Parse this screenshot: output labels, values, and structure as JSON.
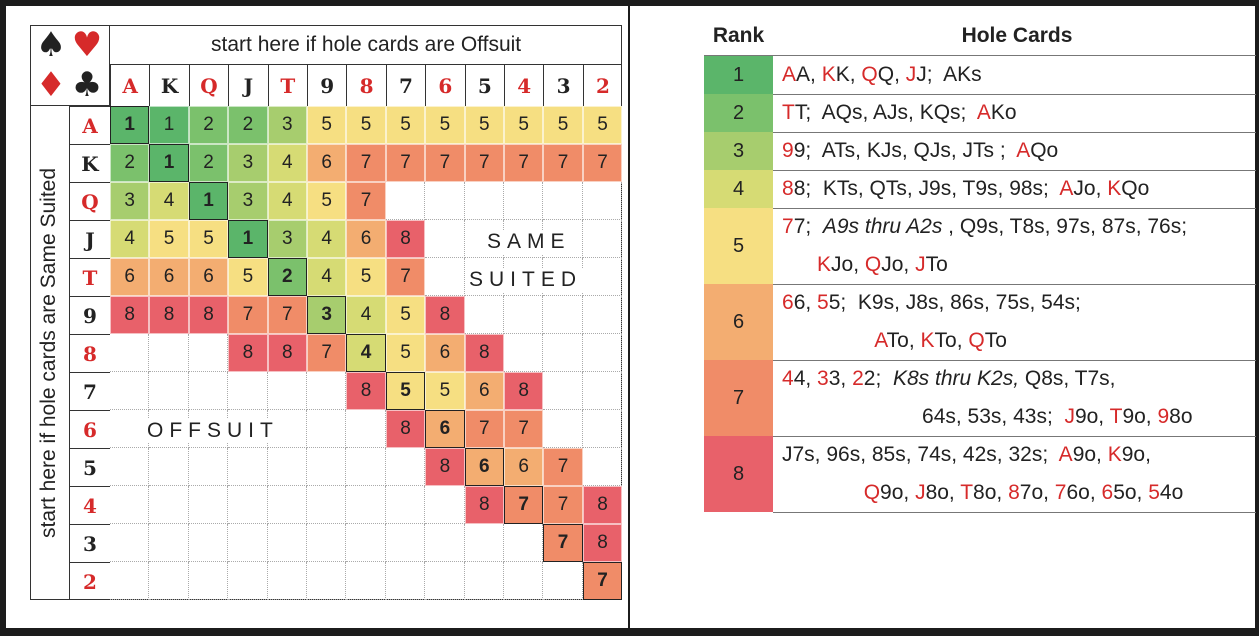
{
  "colors": {
    "r1": "#5bb56a",
    "r2": "#7bc16c",
    "r3": "#a7cd6e",
    "r4": "#d6db74",
    "r5": "#f6df82",
    "r6": "#f3ad71",
    "r7": "#f08c68",
    "r8": "#e8616a",
    "red": "#d62a2a",
    "black": "#222222"
  },
  "chart": {
    "top_header": "start here if hole cards are Offsuit",
    "side_header": "start here if hole cards are Same Suited",
    "suits": [
      {
        "icon": "spade-icon",
        "glyph": "♠",
        "color": "black"
      },
      {
        "icon": "heart-icon",
        "glyph": "♥",
        "color": "red"
      },
      {
        "icon": "diamond-icon",
        "glyph": "♦",
        "color": "red"
      },
      {
        "icon": "club-icon",
        "glyph": "♣",
        "color": "black"
      }
    ],
    "ranks": [
      "A",
      "K",
      "Q",
      "J",
      "T",
      "9",
      "8",
      "7",
      "6",
      "5",
      "4",
      "3",
      "2"
    ],
    "rank_colors": [
      "red",
      "black",
      "red",
      "black",
      "red",
      "black",
      "red",
      "black",
      "red",
      "black",
      "red",
      "black",
      "red"
    ],
    "suited_label_1": "SAME",
    "suited_label_2": "SUITED",
    "offsuit_label": "OFFSUIT",
    "cells": [
      [
        "1",
        "1",
        "2",
        "2",
        "3",
        "5",
        "5",
        "5",
        "5",
        "5",
        "5",
        "5",
        "5"
      ],
      [
        "2",
        "1",
        "2",
        "3",
        "4",
        "6",
        "7",
        "7",
        "7",
        "7",
        "7",
        "7",
        "7"
      ],
      [
        "3",
        "4",
        "1",
        "3",
        "4",
        "5",
        "7",
        "",
        "",
        "",
        "",
        "",
        ""
      ],
      [
        "4",
        "5",
        "5",
        "1",
        "3",
        "4",
        "6",
        "8",
        "",
        "",
        "",
        "",
        ""
      ],
      [
        "6",
        "6",
        "6",
        "5",
        "2",
        "4",
        "5",
        "7",
        "",
        "",
        "",
        "",
        ""
      ],
      [
        "8",
        "8",
        "8",
        "7",
        "7",
        "3",
        "4",
        "5",
        "8",
        "",
        "",
        "",
        ""
      ],
      [
        "",
        "",
        "",
        "8",
        "8",
        "7",
        "4",
        "5",
        "6",
        "8",
        "",
        "",
        ""
      ],
      [
        "",
        "",
        "",
        "",
        "",
        "",
        "8",
        "5",
        "5",
        "6",
        "8",
        "",
        ""
      ],
      [
        "",
        "",
        "",
        "",
        "",
        "",
        "",
        "8",
        "6",
        "7",
        "7",
        "",
        ""
      ],
      [
        "",
        "",
        "",
        "",
        "",
        "",
        "",
        "",
        "8",
        "6",
        "6",
        "7",
        ""
      ],
      [
        "",
        "",
        "",
        "",
        "",
        "",
        "",
        "",
        "",
        "8",
        "7",
        "7",
        "8"
      ],
      [
        "",
        "",
        "",
        "",
        "",
        "",
        "",
        "",
        "",
        "",
        "",
        "7",
        "8"
      ],
      [
        "",
        "",
        "",
        "",
        "",
        "",
        "",
        "",
        "",
        "",
        "",
        "",
        "7"
      ]
    ]
  },
  "table": {
    "rank_header": "Rank",
    "cards_header": "Hole Cards",
    "rows": [
      {
        "rank": "1",
        "lines": [
          [
            [
              "r",
              "A"
            ],
            [
              "",
              "A, "
            ],
            [
              "r",
              "K"
            ],
            [
              "",
              "K, "
            ],
            [
              "r",
              "Q"
            ],
            [
              "",
              "Q, "
            ],
            [
              "r",
              "J"
            ],
            [
              "",
              "J;  AKs"
            ]
          ]
        ]
      },
      {
        "rank": "2",
        "lines": [
          [
            [
              "r",
              "T"
            ],
            [
              "",
              "T;  AQs, AJs, KQs;  "
            ],
            [
              "r",
              "A"
            ],
            [
              "",
              "Ko"
            ]
          ]
        ]
      },
      {
        "rank": "3",
        "lines": [
          [
            [
              "r",
              "9"
            ],
            [
              "",
              "9;  ATs, KJs, QJs, JTs ;  "
            ],
            [
              "r",
              "A"
            ],
            [
              "",
              "Qo"
            ]
          ]
        ]
      },
      {
        "rank": "4",
        "lines": [
          [
            [
              "r",
              "8"
            ],
            [
              "",
              "8;  KTs, QTs, J9s, T9s, 98s;  "
            ],
            [
              "r",
              "A"
            ],
            [
              "",
              "Jo, "
            ],
            [
              "r",
              "K"
            ],
            [
              "",
              "Qo"
            ]
          ]
        ]
      },
      {
        "rank": "5",
        "lines": [
          [
            [
              "r",
              "7"
            ],
            [
              "",
              "7;  "
            ],
            [
              "i",
              "A9s thru A2s"
            ],
            [
              "",
              " , Q9s, T8s, 97s, 87s, 76s;"
            ]
          ],
          [
            [
              "",
              "      "
            ],
            [
              "r",
              "K"
            ],
            [
              "",
              "Jo, "
            ],
            [
              "r",
              "Q"
            ],
            [
              "",
              "Jo, "
            ],
            [
              "r",
              "J"
            ],
            [
              "",
              "To"
            ]
          ]
        ]
      },
      {
        "rank": "6",
        "lines": [
          [
            [
              "r",
              "6"
            ],
            [
              "",
              "6, "
            ],
            [
              "r",
              "5"
            ],
            [
              "",
              "5;  K9s, J8s, 86s, 75s, 54s;"
            ]
          ],
          [
            [
              "",
              "                "
            ],
            [
              "r",
              "A"
            ],
            [
              "",
              "To, "
            ],
            [
              "r",
              "K"
            ],
            [
              "",
              "To, "
            ],
            [
              "r",
              "Q"
            ],
            [
              "",
              "To"
            ]
          ]
        ]
      },
      {
        "rank": "7",
        "lines": [
          [
            [
              "r",
              "4"
            ],
            [
              "",
              "4, "
            ],
            [
              "r",
              "3"
            ],
            [
              "",
              "3, "
            ],
            [
              "r",
              "2"
            ],
            [
              "",
              "2;  "
            ],
            [
              "i",
              "K8s thru K2s,"
            ],
            [
              "",
              " Q8s, T7s,"
            ]
          ],
          [
            [
              "",
              "                        64s, 53s, 43s;  "
            ],
            [
              "r",
              "J"
            ],
            [
              "",
              "9o, "
            ],
            [
              "r",
              "T"
            ],
            [
              "",
              "9o, "
            ],
            [
              "r",
              "9"
            ],
            [
              "",
              "8o"
            ]
          ]
        ]
      },
      {
        "rank": "8",
        "lines": [
          [
            [
              "",
              "J7s, 96s, 85s, 74s, 42s, 32s;  "
            ],
            [
              "r",
              "A"
            ],
            [
              "",
              "9o, "
            ],
            [
              "r",
              "K"
            ],
            [
              "",
              "9o,"
            ]
          ],
          [
            [
              "",
              "              "
            ],
            [
              "r",
              "Q"
            ],
            [
              "",
              "9o, "
            ],
            [
              "r",
              "J"
            ],
            [
              "",
              "8o, "
            ],
            [
              "r",
              "T"
            ],
            [
              "",
              "8o, "
            ],
            [
              "r",
              "8"
            ],
            [
              "",
              "7o, "
            ],
            [
              "r",
              "7"
            ],
            [
              "",
              "6o, "
            ],
            [
              "r",
              "6"
            ],
            [
              "",
              "5o, "
            ],
            [
              "r",
              "5"
            ],
            [
              "",
              "4o"
            ]
          ]
        ]
      }
    ]
  }
}
